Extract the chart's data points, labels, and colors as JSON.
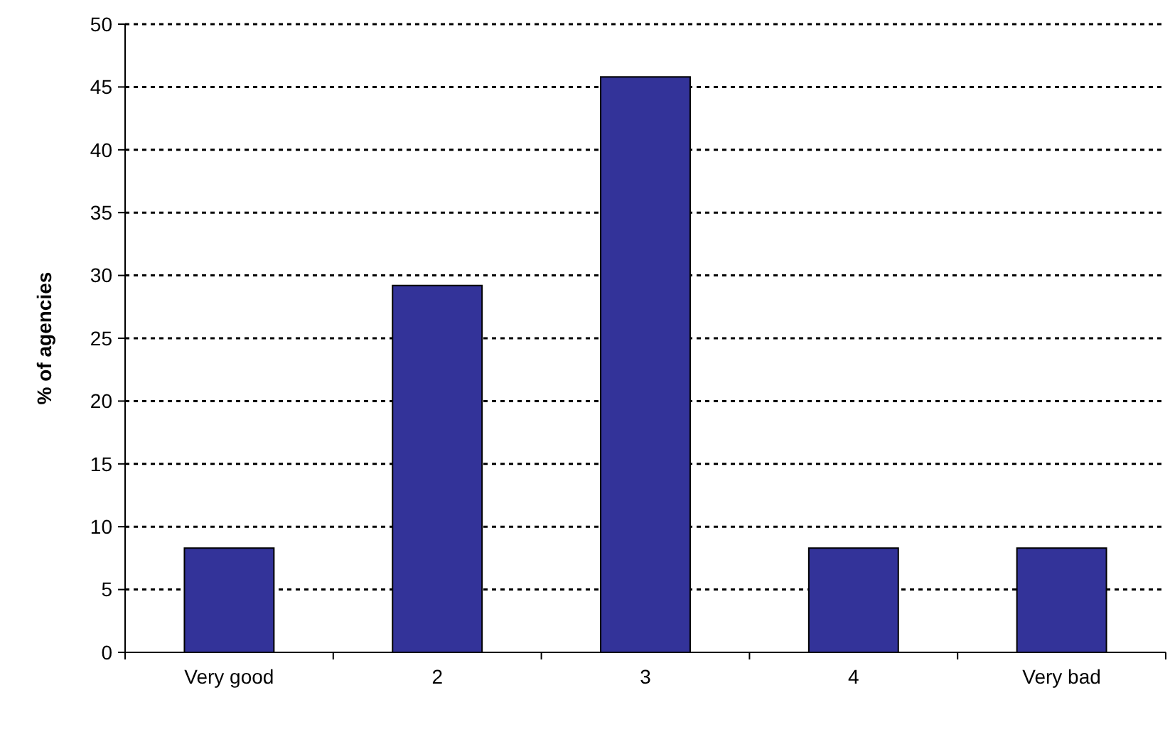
{
  "chart_data": {
    "type": "bar",
    "ylabel": "% of agencies",
    "categories": [
      "Very good",
      "2",
      "3",
      "4",
      "Very bad"
    ],
    "values": [
      8.3,
      29.2,
      45.8,
      8.3,
      8.3
    ],
    "color": "#333399",
    "ylim": [
      0,
      50
    ],
    "yticks": [
      0,
      5,
      10,
      15,
      20,
      25,
      30,
      35,
      40,
      45,
      50
    ],
    "grid": "y"
  }
}
